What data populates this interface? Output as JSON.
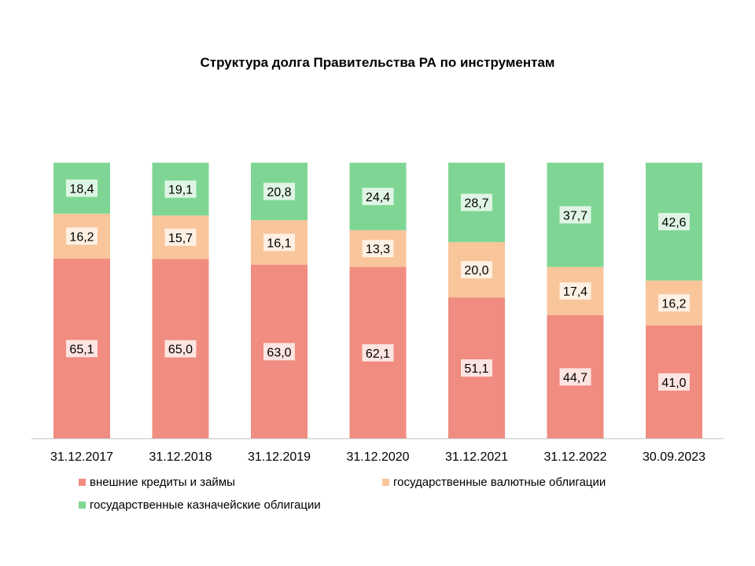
{
  "chart_data": {
    "type": "bar",
    "stacked": true,
    "title": "Структура  долга  Правительства  РА по инструментам",
    "categories": [
      "31.12.2017",
      "31.12.2018",
      "31.12.2019",
      "31.12.2020",
      "31.12.2021",
      "31.12.2022",
      "30.09.2023"
    ],
    "series": [
      {
        "name": "внешние кредиты и займы",
        "color": "#F08C80",
        "values": [
          65.1,
          65.0,
          63.0,
          62.1,
          51.1,
          44.7,
          41.0
        ],
        "labels": [
          "65,1",
          "65,0",
          "63,0",
          "62,1",
          "51,1",
          "44,7",
          "41,0"
        ]
      },
      {
        "name": "государственные валютные облигации",
        "color": "#F9C59B",
        "values": [
          16.2,
          15.7,
          16.1,
          13.3,
          20.0,
          17.4,
          16.2
        ],
        "labels": [
          "16,2",
          "15,7",
          "16,1",
          "13,3",
          "20,0",
          "17,4",
          "16,2"
        ]
      },
      {
        "name": "государственные казначейские облигации",
        "color": "#7FD694",
        "values": [
          18.4,
          19.1,
          20.8,
          24.4,
          28.7,
          37.7,
          42.6
        ],
        "labels": [
          "18,4",
          "19,1",
          "20,8",
          "24,4",
          "28,7",
          "37,7",
          "42,6"
        ]
      }
    ],
    "label_backgrounds": [
      "#FCE4E1",
      "#FEF0E2",
      "#DFF5E4"
    ],
    "ylim": [
      0,
      100
    ],
    "legend_position": "bottom",
    "grid": false
  }
}
